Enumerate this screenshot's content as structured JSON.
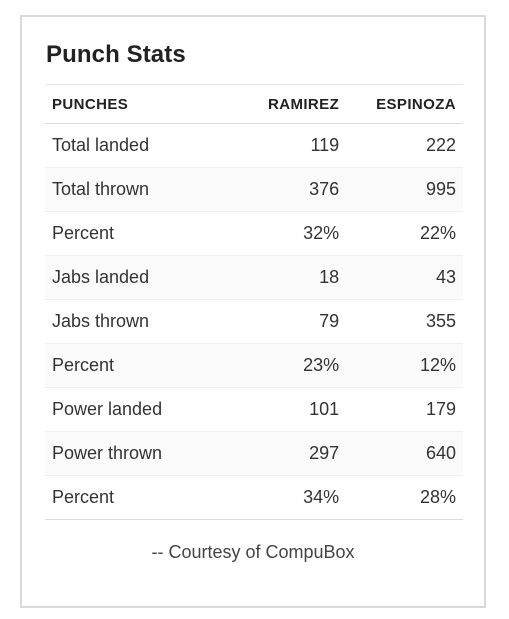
{
  "card": {
    "title": "Punch Stats",
    "credit": "-- Courtesy of CompuBox"
  },
  "table": {
    "headers": [
      "PUNCHES",
      "RAMIREZ",
      "ESPINOZA"
    ],
    "rows": [
      [
        "Total landed",
        "119",
        "222"
      ],
      [
        "Total thrown",
        "376",
        "995"
      ],
      [
        "Percent",
        "32%",
        "22%"
      ],
      [
        "Jabs landed",
        "18",
        "43"
      ],
      [
        "Jabs thrown",
        "79",
        "355"
      ],
      [
        "Percent",
        "23%",
        "12%"
      ],
      [
        "Power landed",
        "101",
        "179"
      ],
      [
        "Power thrown",
        "297",
        "640"
      ],
      [
        "Percent",
        "34%",
        "28%"
      ]
    ]
  },
  "colors": {
    "border": "#d9d9d9",
    "stripe": "#fafafa",
    "text": "#333333"
  }
}
